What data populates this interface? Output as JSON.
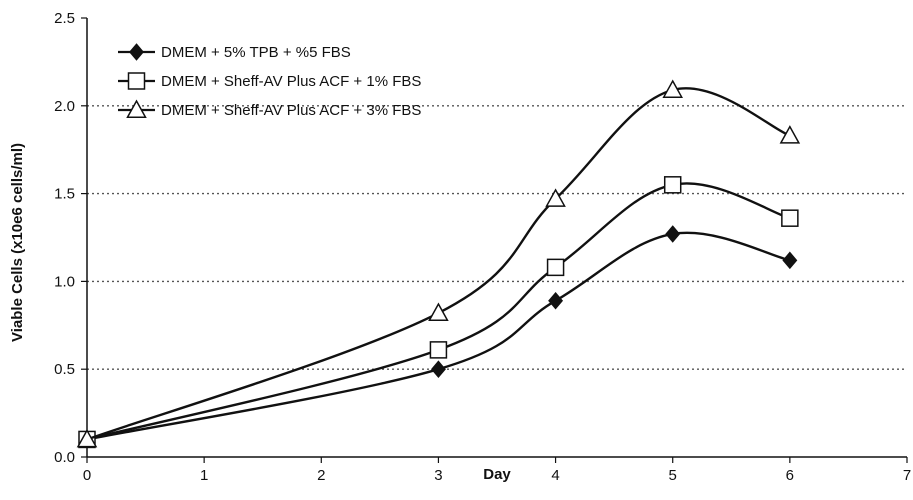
{
  "chart_data": {
    "type": "line",
    "title": "",
    "xlabel": "Day",
    "ylabel": "Viable Cells (x10e6 cells/ml)",
    "xlim": [
      0,
      7
    ],
    "ylim": [
      0,
      2.5
    ],
    "x_ticks": [
      "0",
      "1",
      "2",
      "3",
      "4",
      "5",
      "6",
      "7"
    ],
    "y_ticks": [
      "0.0",
      "0.5",
      "1.0",
      "1.5",
      "2.0",
      "2.5"
    ],
    "grid": "horizontal dotted",
    "legend_position": "top-left",
    "series": [
      {
        "name": "DMEM + 5% TPB + %5 FBS",
        "marker": "filled-diamond",
        "x": [
          0,
          3,
          4,
          5,
          6
        ],
        "y": [
          0.1,
          0.5,
          0.89,
          1.27,
          1.12
        ]
      },
      {
        "name": "DMEM + Sheff-AV Plus ACF + 1% FBS",
        "marker": "open-square",
        "x": [
          0,
          3,
          4,
          5,
          6
        ],
        "y": [
          0.1,
          0.61,
          1.08,
          1.55,
          1.36
        ]
      },
      {
        "name": "DMEM + Sheff-AV Plus ACF + 3% FBS",
        "marker": "open-triangle",
        "x": [
          0,
          3,
          4,
          5,
          6
        ],
        "y": [
          0.1,
          0.82,
          1.47,
          2.09,
          1.83
        ]
      }
    ],
    "colors": {
      "line": "#111111",
      "grid": "#555555",
      "background": "#ffffff"
    }
  }
}
